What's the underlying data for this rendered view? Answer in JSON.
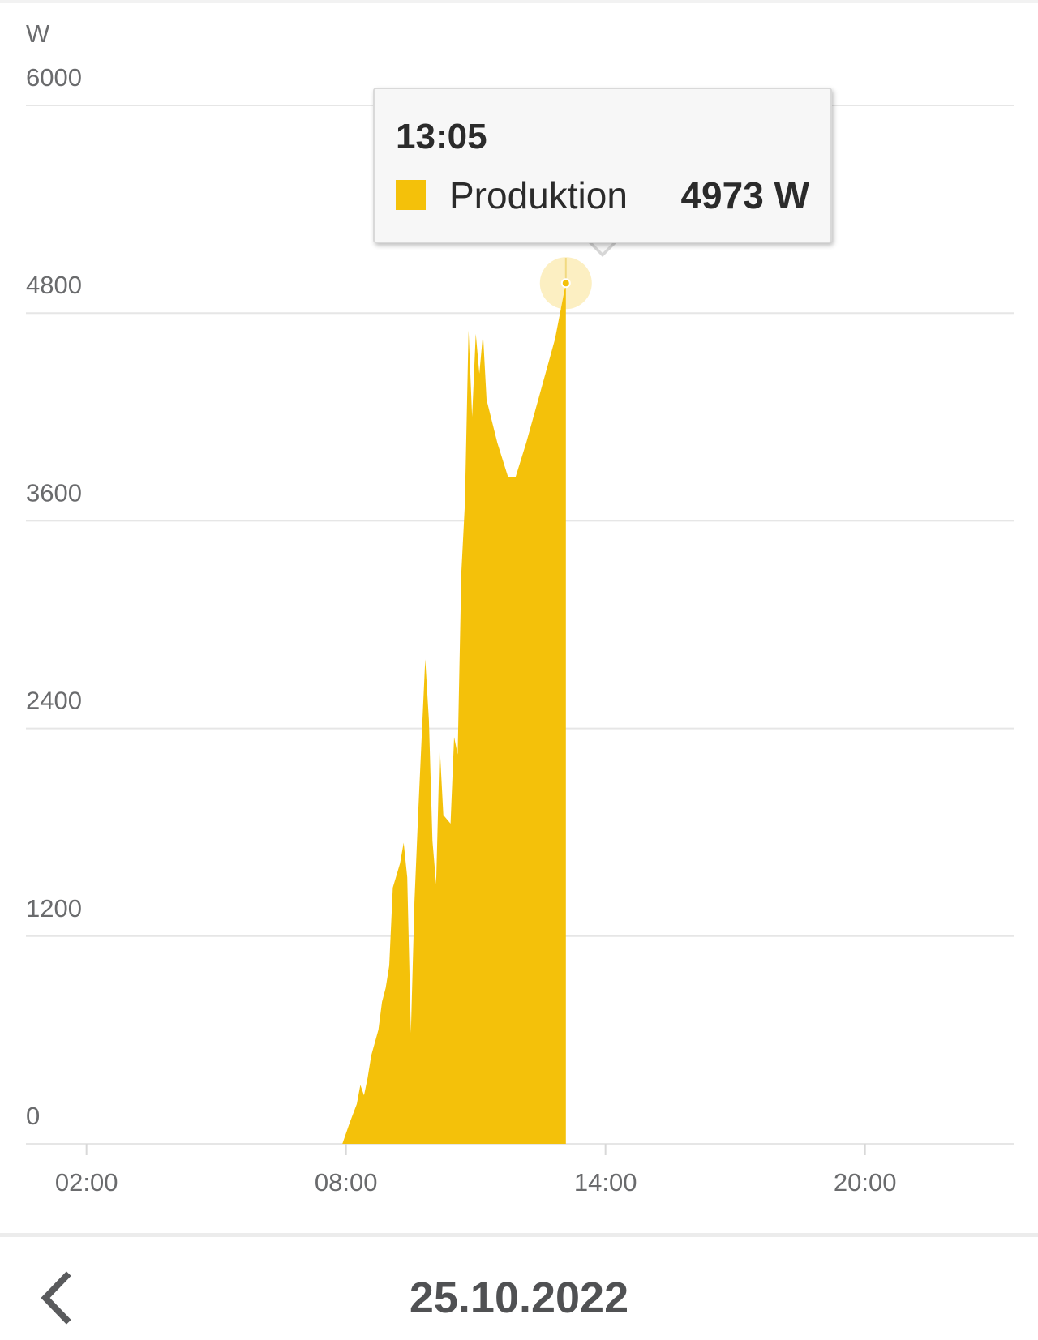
{
  "chart_data": {
    "type": "area",
    "unit": "W",
    "ylim": [
      0,
      6000
    ],
    "yticks": [
      0,
      1200,
      2400,
      3600,
      4800,
      6000
    ],
    "xlim": [
      "00:00",
      "24:00"
    ],
    "xticks": [
      "02:00",
      "08:00",
      "14:00",
      "20:00"
    ],
    "grid": true,
    "series": [
      {
        "name": "Produktion",
        "color": "#f4c10a",
        "points": [
          [
            "07:55",
            0
          ],
          [
            "08:05",
            120
          ],
          [
            "08:15",
            230
          ],
          [
            "08:20",
            340
          ],
          [
            "08:25",
            280
          ],
          [
            "08:30",
            380
          ],
          [
            "08:35",
            510
          ],
          [
            "08:45",
            660
          ],
          [
            "08:50",
            820
          ],
          [
            "08:55",
            900
          ],
          [
            "09:00",
            1030
          ],
          [
            "09:05",
            1480
          ],
          [
            "09:15",
            1620
          ],
          [
            "09:20",
            1740
          ],
          [
            "09:25",
            1540
          ],
          [
            "09:30",
            640
          ],
          [
            "09:35",
            1400
          ],
          [
            "09:40",
            1900
          ],
          [
            "09:50",
            2800
          ],
          [
            "09:55",
            2450
          ],
          [
            "10:00",
            1750
          ],
          [
            "10:05",
            1500
          ],
          [
            "10:10",
            2300
          ],
          [
            "10:15",
            1900
          ],
          [
            "10:25",
            1850
          ],
          [
            "10:30",
            2350
          ],
          [
            "10:35",
            2250
          ],
          [
            "10:40",
            3300
          ],
          [
            "10:45",
            3700
          ],
          [
            "10:50",
            4700
          ],
          [
            "10:55",
            4200
          ],
          [
            "11:00",
            4680
          ],
          [
            "11:05",
            4450
          ],
          [
            "11:10",
            4680
          ],
          [
            "11:15",
            4300
          ],
          [
            "11:30",
            4050
          ],
          [
            "11:45",
            3850
          ],
          [
            "11:55",
            3850
          ],
          [
            "12:10",
            4050
          ],
          [
            "12:30",
            4350
          ],
          [
            "12:50",
            4650
          ],
          [
            "13:05",
            4973
          ]
        ]
      }
    ],
    "tooltip": {
      "time": "13:05",
      "series": "Produktion",
      "value": "4973 W"
    }
  },
  "nav": {
    "date": "25.10.2022",
    "back_icon": "chevron-left-icon"
  }
}
